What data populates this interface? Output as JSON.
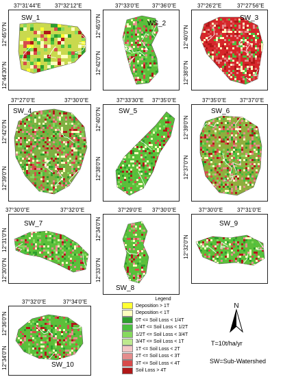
{
  "panels": [
    {
      "id": "SW_1",
      "title": "SW_1",
      "top_ticks": [
        "37°31'44\"E",
        "37°32'12\"E"
      ],
      "left_ticks": [
        "12°45'0\"N",
        "12°44'30\"N"
      ],
      "fill": "#c9d94e",
      "pattern": "pixel"
    },
    {
      "id": "WS_2",
      "title": "WS_2",
      "top_ticks": [
        "37°33'0\"E",
        "37°36'0\"E"
      ],
      "left_ticks": [
        "12°45'0\"N",
        "12°42'0\"N"
      ],
      "fill": "#5cbf3a",
      "pattern": "green"
    },
    {
      "id": "SW_3",
      "title": "SW_3",
      "top_ticks": [
        "37°26'2\"E",
        "37°27'56\"E"
      ],
      "left_ticks": [
        "12°40'0\"N",
        "12°38'0\"N"
      ],
      "fill": "#d6262a",
      "pattern": "red"
    },
    {
      "id": "SW_4",
      "title": "SW_4",
      "top_ticks": [
        "37°27'0\"E",
        "37°30'0\"E"
      ],
      "left_ticks": [
        "12°42'0\"N",
        "12°39'0\"N"
      ],
      "fill": "#7fb043",
      "pattern": "mixed"
    },
    {
      "id": "SW_5",
      "title": "SW_5",
      "top_ticks": [
        "37°33'30\"E",
        "37°35'0\"E"
      ],
      "left_ticks": [
        "12°40'0\"N",
        "12°38'0\"N"
      ],
      "fill": "#5cbf3a",
      "pattern": "mixed-red"
    },
    {
      "id": "SW_6",
      "title": "SW_6",
      "top_ticks": [
        "37°35'0\"E",
        "37°37'0\"E"
      ],
      "left_ticks": [
        "12°39'0\"N",
        "12°37'0\"N"
      ],
      "fill": "#8fae3e",
      "pattern": "mixed"
    },
    {
      "id": "SW_7",
      "title": "SW_7",
      "top_ticks": [
        "37°30'0\"E",
        "37°32'0\"E"
      ],
      "left_ticks": [
        "12°31'0\"N",
        "12°30'0\"N"
      ],
      "fill": "#5cbf3a",
      "pattern": "green"
    },
    {
      "id": "SW_8",
      "title": "SW_8",
      "top_ticks": [
        "37°29'0\"E",
        "37°30'0\"E"
      ],
      "left_ticks": [
        "12°34'0\"N",
        "12°33'0\"N"
      ],
      "fill": "#5cbf3a",
      "pattern": "mixed"
    },
    {
      "id": "SW_9",
      "title": "SW_9",
      "top_ticks": [
        "37°30'0\"E",
        "37°31'0\"E"
      ],
      "left_ticks": [
        "12°32'0\"N"
      ],
      "fill": "#5cbf3a",
      "pattern": "green"
    },
    {
      "id": "SW_10",
      "title": "SW_10",
      "top_ticks": [
        "37°32'0\"E",
        "37°34'0\"E"
      ],
      "left_ticks": [
        "12°36'0\"N",
        "12°34'0\"N"
      ],
      "fill": "#5cbf3a",
      "pattern": "green"
    }
  ],
  "legend": {
    "title": "Legend",
    "items": [
      {
        "label": "Deposition > 1T",
        "color": "#ffff33"
      },
      {
        "label": "Deposition < 1T",
        "color": "#ffffc0"
      },
      {
        "label": "0T <= Soil Loss < 1/4T",
        "color": "#2e9e2e"
      },
      {
        "label": "1/4T <= Soil Loss < 1/2T",
        "color": "#4cc040"
      },
      {
        "label": "1/2T <= Soil Loss < 3/4T",
        "color": "#86d95e"
      },
      {
        "label": "3/4T <= Soil Loss < 1T",
        "color": "#bde98e"
      },
      {
        "label": "1T <= Soil Loss < 2T",
        "color": "#f3c6c6"
      },
      {
        "label": "2T <= Soil Loss < 3T",
        "color": "#e58d8d"
      },
      {
        "label": "3T <= Soil Loss < 4T",
        "color": "#d84b4b"
      },
      {
        "label": "Soil Loss > 4T",
        "color": "#b01818"
      }
    ]
  },
  "north_label": "N",
  "tolerance_note": "T=10t/ha/yr",
  "abbrev_note": "SW=Sub-Watershed"
}
